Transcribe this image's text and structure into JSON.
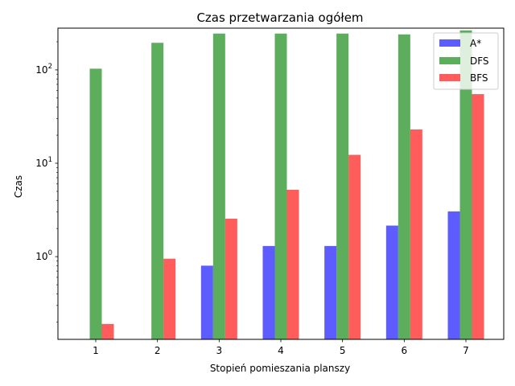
{
  "chart_data": {
    "type": "bar",
    "title": "Czas przetwarzania ogółem",
    "xlabel": "Stopień pomieszania planszy",
    "ylabel": "Czas",
    "yscale": "log",
    "ylim": [
      0.13,
      280
    ],
    "grid": false,
    "legend_position": "top-right",
    "categories": [
      "1",
      "2",
      "3",
      "4",
      "5",
      "6",
      "7"
    ],
    "series": [
      {
        "name": "A*",
        "color": "#3333ff",
        "values": [
          null,
          null,
          0.8,
          1.3,
          1.3,
          2.15,
          3.05
        ]
      },
      {
        "name": "DFS",
        "color": "#339933",
        "values": [
          103,
          195,
          245,
          245,
          245,
          240,
          265
        ]
      },
      {
        "name": "BFS",
        "color": "#ff3333",
        "values": [
          0.19,
          0.95,
          2.55,
          5.2,
          12.3,
          23,
          55
        ]
      }
    ],
    "yticks": [
      {
        "value": 1,
        "base": "10",
        "exp": "0"
      },
      {
        "value": 10,
        "base": "10",
        "exp": "1"
      },
      {
        "value": 100,
        "base": "10",
        "exp": "2"
      }
    ]
  }
}
